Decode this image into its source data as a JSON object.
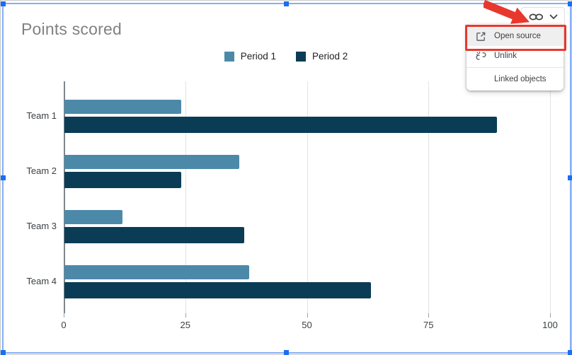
{
  "chart_data": {
    "type": "bar",
    "orientation": "horizontal",
    "title": "Points scored",
    "categories": [
      "Team 1",
      "Team 2",
      "Team 3",
      "Team 4"
    ],
    "series": [
      {
        "name": "Period 1",
        "color": "#4C89A9",
        "values": [
          24,
          36,
          12,
          38
        ]
      },
      {
        "name": "Period 2",
        "color": "#0B3C55",
        "values": [
          89,
          24,
          37,
          63
        ]
      }
    ],
    "xlabel": "",
    "ylabel": "",
    "xlim": [
      0,
      100
    ],
    "xticks": [
      0,
      25,
      50,
      75,
      100
    ],
    "grid": true,
    "legend_position": "top-center",
    "title_color": "#818181",
    "gridline_color": "#e3e3e3",
    "axis_color": "#80868b"
  },
  "link_controls": {
    "link_icon": "link-chain-icon",
    "chevron_icon": "chevron-down-icon"
  },
  "menu": {
    "items": [
      {
        "label": "Open source",
        "icon": "open-in-new-icon",
        "highlighted": true
      },
      {
        "label": "Unlink",
        "icon": "unlink-icon",
        "highlighted": false
      },
      {
        "label": "Linked objects",
        "icon": null,
        "highlighted": false
      }
    ]
  },
  "annotations": {
    "arrow_color": "#E8382D",
    "highlight_box_color": "#E8382D"
  },
  "selection": {
    "border_color": "#85AEF6",
    "handle_color": "#1A6EF3"
  }
}
